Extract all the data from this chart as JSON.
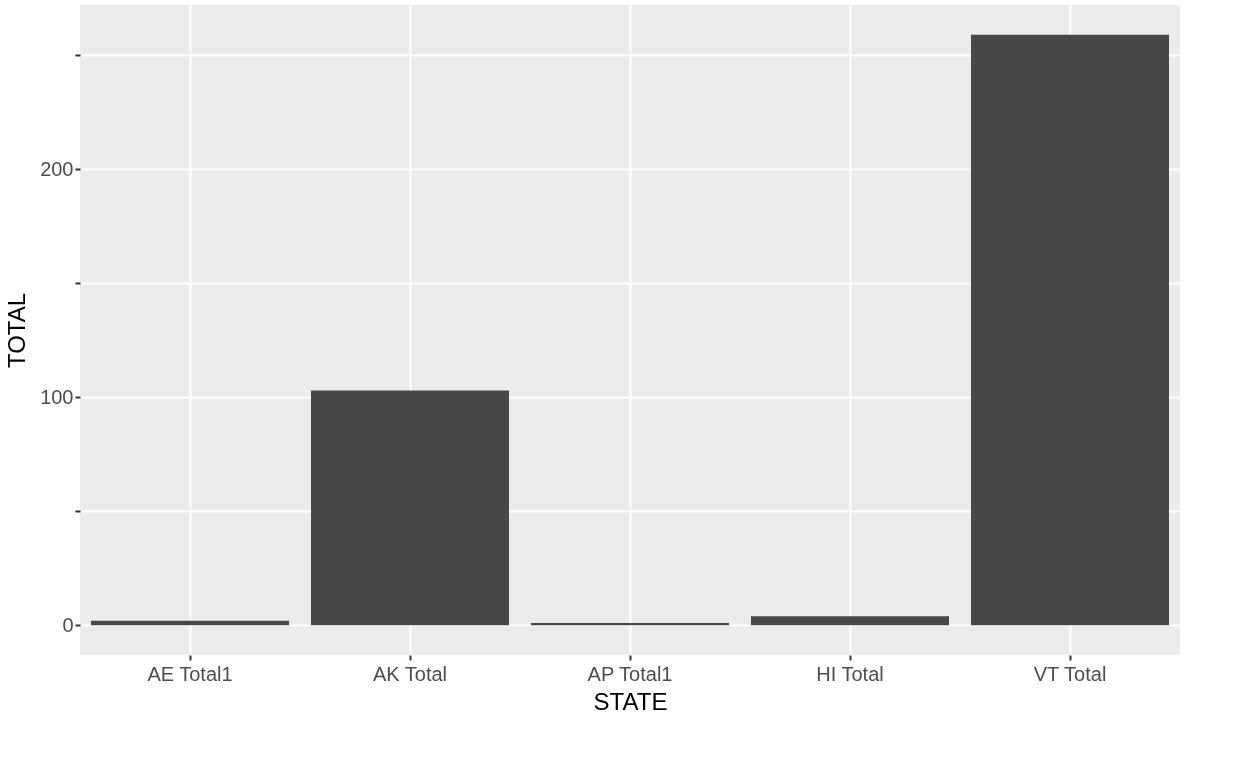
{
  "chart_data": {
    "type": "bar",
    "xlabel": "STATE",
    "ylabel": "TOTAL",
    "categories": [
      "AE Total1",
      "AK Total",
      "AP Total1",
      "HI Total",
      "VT Total"
    ],
    "values": [
      2,
      103,
      1,
      4,
      259
    ],
    "color": "#474747",
    "ylim": [
      -13,
      272
    ],
    "yticks": [
      0,
      {
        "value": 50,
        "label": null
      },
      100,
      {
        "value": 150,
        "label": null
      },
      200,
      {
        "value": 250,
        "label": null
      }
    ],
    "grid": true
  }
}
